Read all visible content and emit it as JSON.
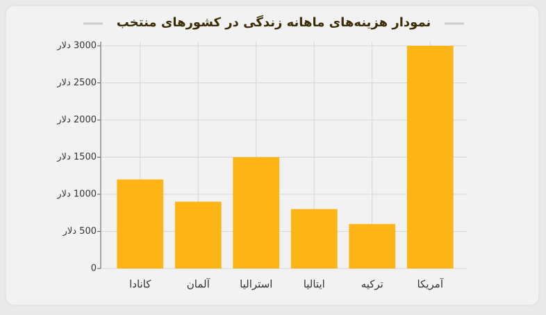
{
  "chart_data": {
    "type": "bar",
    "title": "نمودار هزینه‌های ماهانه زندگی در کشورهای منتخب",
    "categories": [
      "کانادا",
      "آلمان",
      "استرالیا",
      "ایتالیا",
      "ترکیه",
      "آمریکا"
    ],
    "values": [
      1200,
      900,
      1500,
      800,
      600,
      3000
    ],
    "color": "#fdb515",
    "ylim": [
      0,
      3000
    ],
    "yticks": [
      0,
      {
        "value": 500,
        "label": "500 دلار"
      },
      {
        "value": 1000,
        "label": "1000 دلار"
      },
      {
        "value": 1500,
        "label": "1500 دلار"
      },
      {
        "value": 2000,
        "label": "2000 دلار"
      },
      {
        "value": 2500,
        "label": "2500 دلار"
      },
      {
        "value": 3000,
        "label": "3000 دلار"
      }
    ],
    "grid": true
  }
}
